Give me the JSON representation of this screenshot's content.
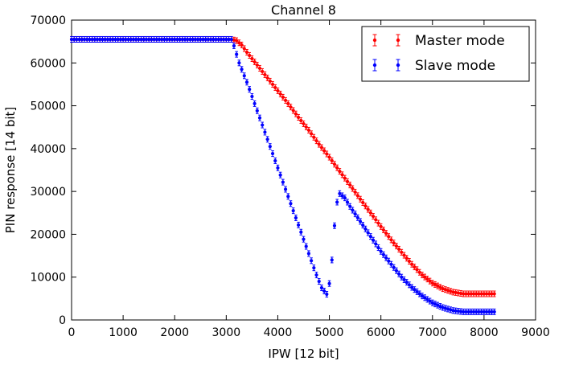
{
  "chart_data": {
    "type": "scatter",
    "title": "Channel 8",
    "xlabel": "IPW [12 bit]",
    "ylabel": "PIN response [14 bit]",
    "xlim": [
      0,
      9000
    ],
    "ylim": [
      0,
      70000
    ],
    "xticks": [
      0,
      1000,
      2000,
      3000,
      4000,
      5000,
      6000,
      7000,
      8000,
      9000
    ],
    "yticks": [
      0,
      10000,
      20000,
      30000,
      40000,
      50000,
      60000,
      70000
    ],
    "xtick_labels": [
      "0",
      "1000",
      "2000",
      "3000",
      "4000",
      "5000",
      "6000",
      "7000",
      "8000",
      "9000"
    ],
    "ytick_labels": [
      "0",
      "10000",
      "20000",
      "30000",
      "40000",
      "50000",
      "60000",
      "70000"
    ],
    "grid": false,
    "legend_position": "top-right",
    "series": [
      {
        "name": "Master mode",
        "color": "#ff0000",
        "points": [
          [
            0,
            65500
          ],
          [
            3100,
            65500
          ],
          [
            3200,
            65200
          ],
          [
            3300,
            64200
          ],
          [
            3400,
            62500
          ],
          [
            3600,
            59500
          ],
          [
            3800,
            56500
          ],
          [
            4000,
            53500
          ],
          [
            4200,
            50500
          ],
          [
            4400,
            47300
          ],
          [
            4600,
            44300
          ],
          [
            4800,
            41000
          ],
          [
            5000,
            38000
          ],
          [
            5200,
            34700
          ],
          [
            5400,
            31500
          ],
          [
            5600,
            28200
          ],
          [
            5800,
            25000
          ],
          [
            6000,
            21800
          ],
          [
            6200,
            18700
          ],
          [
            6400,
            15800
          ],
          [
            6600,
            13000
          ],
          [
            6800,
            10500
          ],
          [
            7000,
            8600
          ],
          [
            7200,
            7300
          ],
          [
            7400,
            6500
          ],
          [
            7600,
            6100
          ],
          [
            8220,
            6100
          ]
        ]
      },
      {
        "name": "Slave mode",
        "color": "#0000ff",
        "points": [
          [
            0,
            65500
          ],
          [
            3100,
            65500
          ],
          [
            3150,
            64000
          ],
          [
            3250,
            60000
          ],
          [
            3400,
            55500
          ],
          [
            3550,
            50500
          ],
          [
            3700,
            45500
          ],
          [
            3850,
            40500
          ],
          [
            4000,
            35500
          ],
          [
            4150,
            30500
          ],
          [
            4300,
            25500
          ],
          [
            4450,
            20500
          ],
          [
            4600,
            15500
          ],
          [
            4750,
            10500
          ],
          [
            4850,
            7500
          ],
          [
            4950,
            6000
          ],
          [
            5000,
            8500
          ],
          [
            5050,
            14000
          ],
          [
            5100,
            22000
          ],
          [
            5150,
            27500
          ],
          [
            5200,
            29500
          ],
          [
            5300,
            28500
          ],
          [
            5400,
            26500
          ],
          [
            5600,
            23000
          ],
          [
            5800,
            19500
          ],
          [
            6000,
            16000
          ],
          [
            6200,
            13000
          ],
          [
            6400,
            10000
          ],
          [
            6600,
            7600
          ],
          [
            6800,
            5600
          ],
          [
            7000,
            4000
          ],
          [
            7200,
            2900
          ],
          [
            7400,
            2200
          ],
          [
            7600,
            1900
          ],
          [
            8220,
            1900
          ]
        ]
      }
    ]
  }
}
